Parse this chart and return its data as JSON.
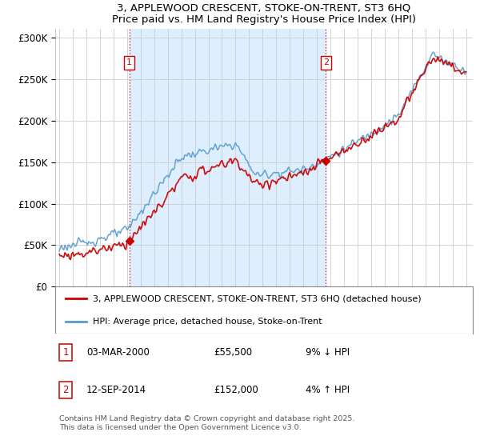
{
  "title": "3, APPLEWOOD CRESCENT, STOKE-ON-TRENT, ST3 6HQ",
  "subtitle": "Price paid vs. HM Land Registry's House Price Index (HPI)",
  "background_color": "#ffffff",
  "plot_bg_color": "#ffffff",
  "grid_color": "#cccccc",
  "shade_color": "#ddeeff",
  "sale1_date": "03-MAR-2000",
  "sale1_price": 55500,
  "sale2_date": "12-SEP-2014",
  "sale2_price": 152000,
  "sale1_pct": "9% ↓ HPI",
  "sale2_pct": "4% ↑ HPI",
  "legend_line1": "3, APPLEWOOD CRESCENT, STOKE-ON-TRENT, ST3 6HQ (detached house)",
  "legend_line2": "HPI: Average price, detached house, Stoke-on-Trent",
  "footer": "Contains HM Land Registry data © Crown copyright and database right 2025.\nThis data is licensed under the Open Government Licence v3.0.",
  "price_color": "#cc0000",
  "hpi_color": "#5599cc",
  "vline_color": "#cc0000",
  "ylim": [
    0,
    310000
  ],
  "yticks": [
    0,
    50000,
    100000,
    150000,
    200000,
    250000,
    300000
  ],
  "ytick_labels": [
    "£0",
    "£50K",
    "£100K",
    "£150K",
    "£200K",
    "£250K",
    "£300K"
  ]
}
